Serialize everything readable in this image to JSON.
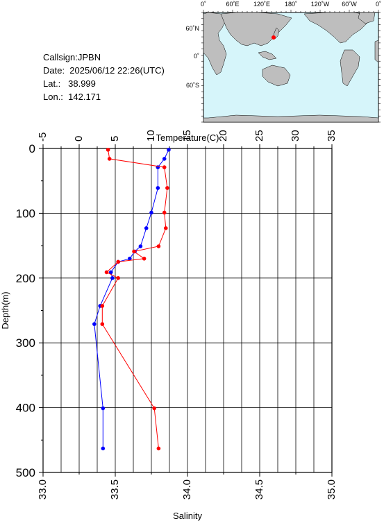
{
  "station": {
    "callsign": "Callsign:JPBN",
    "date": "Date:  2025/06/12 22:26(UTC)",
    "lat": "Lat.:   38.999",
    "lon": "Lon.:  142.171"
  },
  "map": {
    "top_labels": [
      "0˚",
      "60˚E",
      "120˚E",
      "180˚",
      "120˚W",
      "60˚W",
      "0˚"
    ],
    "left_labels": [
      "60˚N",
      "0˚",
      "60˚S"
    ],
    "ocean_color": "#d6f5fa",
    "land_color": "#bebebe",
    "marker_color": "#ff0000"
  },
  "chart_data": {
    "type": "line",
    "title": "",
    "temperature_axis": {
      "label": "Temperature(C)",
      "range": [
        -5,
        35
      ],
      "ticks": [
        "-5",
        "0",
        "5",
        "10",
        "15",
        "20",
        "25",
        "30",
        "35"
      ]
    },
    "salinity_axis": {
      "label": "Salinity",
      "range": [
        33.0,
        35.0
      ],
      "ticks": [
        "33.0",
        "33.5",
        "34.0",
        "34.5",
        "35.0"
      ]
    },
    "depth_axis": {
      "label": "Depth(m)",
      "range": [
        0,
        500
      ],
      "ticks": [
        "0",
        "100",
        "200",
        "300",
        "400",
        "500"
      ]
    },
    "grid": true,
    "series": [
      {
        "quantity": "temperature",
        "color": "#0000ff",
        "points": [
          {
            "depth": 2,
            "value": 12.4
          },
          {
            "depth": 16,
            "value": 11.8
          },
          {
            "depth": 29,
            "value": 10.9
          },
          {
            "depth": 61,
            "value": 10.9
          },
          {
            "depth": 99,
            "value": 10.0
          },
          {
            "depth": 123,
            "value": 9.3
          },
          {
            "depth": 151,
            "value": 8.5
          },
          {
            "depth": 159,
            "value": 7.7
          },
          {
            "depth": 170,
            "value": 7.0
          },
          {
            "depth": 175,
            "value": 5.4
          },
          {
            "depth": 191,
            "value": 4.4
          },
          {
            "depth": 200,
            "value": 4.6
          },
          {
            "depth": 243,
            "value": 2.9
          },
          {
            "depth": 271,
            "value": 2.1
          },
          {
            "depth": 401,
            "value": 3.3
          },
          {
            "depth": 463,
            "value": 3.3
          }
        ]
      },
      {
        "quantity": "salinity",
        "color": "#ff0000",
        "points": [
          {
            "depth": 2,
            "value": 33.45
          },
          {
            "depth": 16,
            "value": 33.46
          },
          {
            "depth": 29,
            "value": 33.84
          },
          {
            "depth": 61,
            "value": 33.86
          },
          {
            "depth": 99,
            "value": 33.84
          },
          {
            "depth": 123,
            "value": 33.85
          },
          {
            "depth": 151,
            "value": 33.8
          },
          {
            "depth": 159,
            "value": 33.63
          },
          {
            "depth": 170,
            "value": 33.7
          },
          {
            "depth": 175,
            "value": 33.52
          },
          {
            "depth": 191,
            "value": 33.44
          },
          {
            "depth": 200,
            "value": 33.52
          },
          {
            "depth": 243,
            "value": 33.41
          },
          {
            "depth": 271,
            "value": 33.41
          },
          {
            "depth": 401,
            "value": 33.77
          },
          {
            "depth": 463,
            "value": 33.8
          }
        ]
      }
    ]
  }
}
